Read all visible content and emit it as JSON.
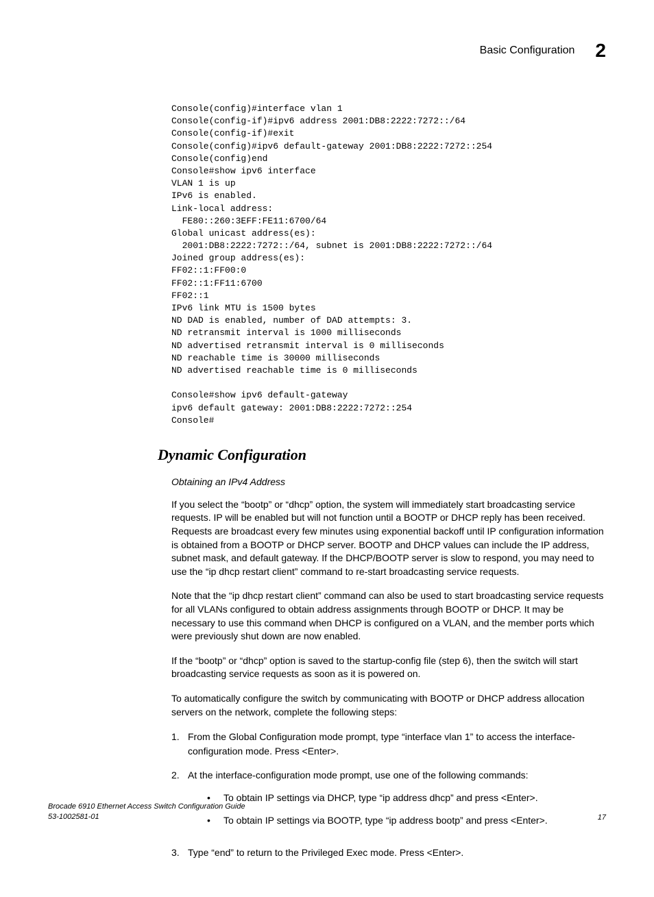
{
  "header": {
    "title": "Basic Configuration",
    "chapter": "2"
  },
  "code": "Console(config)#interface vlan 1\nConsole(config-if)#ipv6 address 2001:DB8:2222:7272::/64\nConsole(config-if)#exit\nConsole(config)#ipv6 default-gateway 2001:DB8:2222:7272::254\nConsole(config)end\nConsole#show ipv6 interface\nVLAN 1 is up\nIPv6 is enabled.\nLink-local address:\n  FE80::260:3EFF:FE11:6700/64\nGlobal unicast address(es):\n  2001:DB8:2222:7272::/64, subnet is 2001:DB8:2222:7272::/64\nJoined group address(es):\nFF02::1:FF00:0\nFF02::1:FF11:6700\nFF02::1\nIPv6 link MTU is 1500 bytes\nND DAD is enabled, number of DAD attempts: 3.\nND retransmit interval is 1000 milliseconds\nND advertised retransmit interval is 0 milliseconds\nND reachable time is 30000 milliseconds\nND advertised reachable time is 0 milliseconds\n\nConsole#show ipv6 default-gateway\nipv6 default gateway: 2001:DB8:2222:7272::254\nConsole#",
  "section_heading": "Dynamic Configuration",
  "subheading": "Obtaining an IPv4 Address",
  "paragraphs": {
    "p1": "If you select the “bootp” or “dhcp” option, the system will immediately start broadcasting service requests. IP will be enabled but will not function until a BOOTP or DHCP reply has been received. Requests are broadcast every few minutes using exponential backoff until IP configuration information is obtained from a BOOTP or DHCP server. BOOTP and DHCP values can include the IP address, subnet mask, and default gateway. If the DHCP/BOOTP server is slow to respond, you may need to use the “ip dhcp restart client” command to re-start broadcasting service requests.",
    "p2": "Note that the “ip dhcp restart client” command can also be used to start broadcasting service requests for all VLANs configured to obtain address assignments through BOOTP or DHCP. It may be necessary to use this command when DHCP is configured on a VLAN, and the member ports which were previously shut down are now enabled.",
    "p3": "If the “bootp” or “dhcp” option is saved to the startup-config file (step 6), then the switch will start broadcasting service requests as soon as it is powered on.",
    "p4": "To automatically configure the switch by communicating with BOOTP or DHCP address allocation servers on the network, complete the following steps:"
  },
  "steps": {
    "step1": {
      "num": "1.",
      "text": "From the Global Configuration mode prompt, type “interface vlan 1” to access the interface-configuration mode. Press <Enter>."
    },
    "step2": {
      "num": "2.",
      "text": "At the interface-configuration mode prompt, use one of the following commands:",
      "bullets": {
        "b1": "To obtain IP settings via DHCP, type “ip address dhcp” and press <Enter>.",
        "b2": "To obtain IP settings via BOOTP, type “ip address bootp” and press <Enter>."
      }
    },
    "step3": {
      "num": "3.",
      "text": "Type “end” to return to the Privileged Exec mode. Press <Enter>."
    }
  },
  "footer": {
    "doc_title": "Brocade 6910 Ethernet Access Switch Configuration Guide",
    "doc_id": "53-1002581-01",
    "page": "17"
  }
}
